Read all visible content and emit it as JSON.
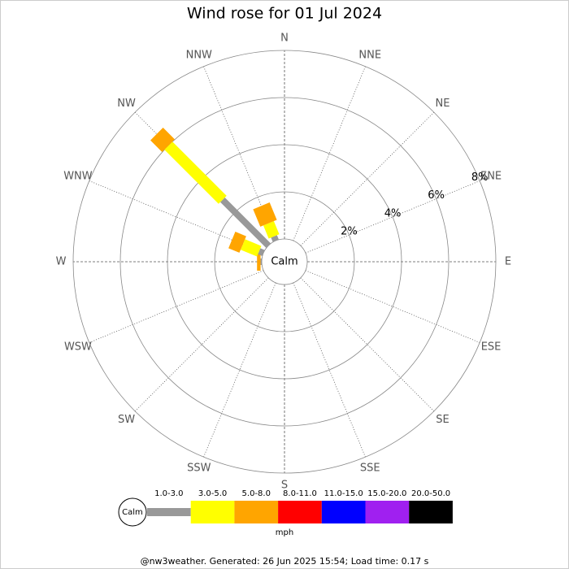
{
  "chart_data": {
    "type": "windrose",
    "title": "Wind rose for 01 Jul 2024",
    "categories": [
      "N",
      "NNE",
      "NE",
      "ENE",
      "E",
      "ESE",
      "SE",
      "SSE",
      "S",
      "SSW",
      "SW",
      "WSW",
      "W",
      "WNW",
      "NW",
      "NNW"
    ],
    "series": [
      {
        "name": "1.0-3.0",
        "color": "#999999",
        "values": [
          0,
          0,
          0,
          0,
          0,
          0,
          0,
          0,
          0,
          0,
          0,
          0,
          0.05,
          0.2,
          2.75,
          0.2
        ]
      },
      {
        "name": "3.0-5.0",
        "color": "#ffff00",
        "values": [
          0,
          0,
          0,
          0,
          0,
          0,
          0,
          0,
          0,
          0,
          0,
          0,
          0,
          0.75,
          3.25,
          0.6
        ]
      },
      {
        "name": "5.0-8.0",
        "color": "#ffa500",
        "values": [
          0,
          0,
          0,
          0,
          0,
          0,
          0,
          0,
          0,
          0,
          0,
          0,
          0.15,
          0.5,
          0.7,
          0.8
        ]
      },
      {
        "name": "8.0-11.0",
        "color": "#ff0000",
        "values": [
          0,
          0,
          0,
          0,
          0,
          0,
          0,
          0,
          0,
          0,
          0,
          0,
          0,
          0,
          0,
          0
        ]
      },
      {
        "name": "11.0-15.0",
        "color": "#0000ff",
        "values": [
          0,
          0,
          0,
          0,
          0,
          0,
          0,
          0,
          0,
          0,
          0,
          0,
          0,
          0,
          0,
          0
        ]
      },
      {
        "name": "15.0-20.0",
        "color": "#a020f0",
        "values": [
          0,
          0,
          0,
          0,
          0,
          0,
          0,
          0,
          0,
          0,
          0,
          0,
          0,
          0,
          0,
          0
        ]
      },
      {
        "name": "20.0-50.0",
        "color": "#000000",
        "values": [
          0,
          0,
          0,
          0,
          0,
          0,
          0,
          0,
          0,
          0,
          0,
          0,
          0,
          0,
          0,
          0
        ]
      }
    ],
    "rlim": [
      0,
      8
    ],
    "rticks": [
      {
        "value": 2,
        "label": "2%"
      },
      {
        "value": 4,
        "label": "4%"
      },
      {
        "value": 6,
        "label": "6%"
      },
      {
        "value": 8,
        "label": "8%"
      }
    ],
    "calm_label": "Calm",
    "speed_unit": "mph",
    "footer": "@nw3weather. Generated: 26 Jun 2025 15:54; Load time: 0.17 s"
  }
}
